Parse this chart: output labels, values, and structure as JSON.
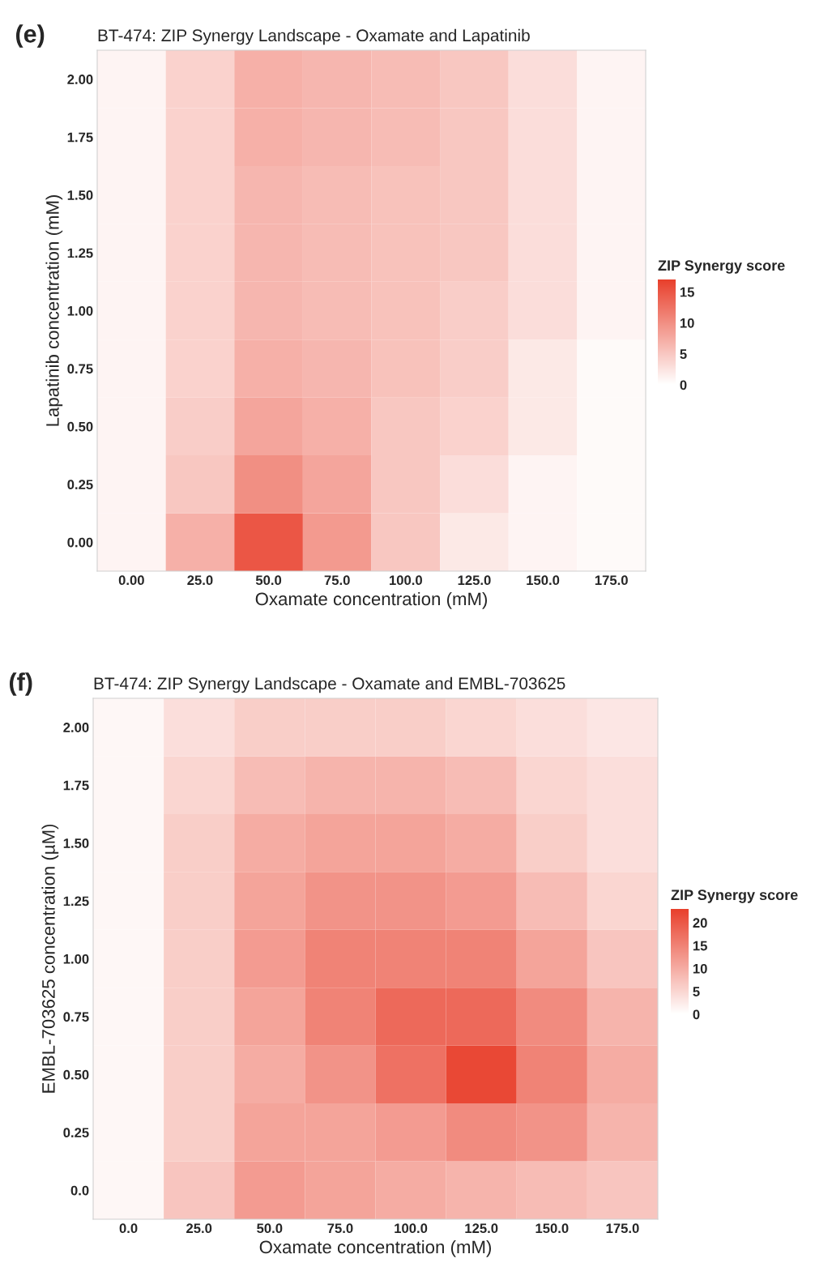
{
  "chart_data": [
    {
      "type": "heatmap",
      "title": "BT-474: ZIP Synergy Landscape - Oxamate and Lapatinib",
      "xlabel": "Oxamate concentration (mM)",
      "ylabel": "Lapatinib concentration (mM)",
      "clabel": "ZIP Synergy score",
      "annotations": [
        "(e)"
      ],
      "categories": [
        "0.00",
        "25.0",
        "50.0",
        "75.0",
        "100.0",
        "125.0",
        "150.0",
        "175.0"
      ],
      "y_categories": [
        "2.00",
        "1.75",
        "1.50",
        "1.25",
        "1.00",
        "0.75",
        "0.50",
        "0.25",
        "0.00"
      ],
      "cells": [
        [
          1,
          4,
          7,
          6.5,
          6,
          5,
          3,
          1
        ],
        [
          1,
          4,
          7,
          6.5,
          6,
          5,
          3,
          1
        ],
        [
          1,
          4,
          6.5,
          6,
          5.5,
          5,
          3,
          1
        ],
        [
          1,
          4,
          6.5,
          6,
          5.5,
          5,
          3,
          1
        ],
        [
          1,
          4,
          6.5,
          6,
          5.5,
          4.5,
          3,
          1
        ],
        [
          1,
          4,
          7,
          6.5,
          5.5,
          4.5,
          2,
          0.5
        ],
        [
          1,
          4.5,
          8,
          7,
          5,
          4,
          2,
          0.5
        ],
        [
          1,
          5,
          10,
          8,
          5,
          3,
          1,
          0.5
        ],
        [
          1,
          7,
          15,
          9,
          5,
          2,
          1,
          0.5
        ]
      ],
      "colors": [
        "#ffffff",
        "#e8402c"
      ],
      "clim": [
        0,
        17
      ],
      "cticks": [
        0,
        5,
        10,
        15
      ]
    },
    {
      "type": "heatmap",
      "title": "BT-474: ZIP Synergy Landscape - Oxamate and EMBL-703625",
      "xlabel": "Oxamate concentration (mM)",
      "ylabel": "EMBL-703625 concentration (µM)",
      "clabel": "ZIP Synergy score",
      "annotations": [
        "(f)"
      ],
      "categories": [
        "0.0",
        "25.0",
        "50.0",
        "75.0",
        "100.0",
        "125.0",
        "150.0",
        "175.0"
      ],
      "y_categories": [
        "2.00",
        "1.75",
        "1.50",
        "1.25",
        "1.00",
        "0.75",
        "0.50",
        "0.25",
        "0.0"
      ],
      "cells": [
        [
          1,
          4,
          6,
          6,
          6,
          5,
          4,
          3
        ],
        [
          1,
          5,
          8,
          9,
          9,
          8,
          5,
          4
        ],
        [
          1,
          6,
          10,
          11,
          11,
          10,
          6,
          4
        ],
        [
          1,
          6,
          11,
          13,
          13,
          12,
          8,
          5
        ],
        [
          1,
          6,
          12,
          15,
          15,
          15,
          11,
          7
        ],
        [
          1,
          6,
          11,
          15,
          18,
          18,
          14,
          9
        ],
        [
          1,
          6,
          10,
          13,
          17,
          22,
          15,
          10
        ],
        [
          1,
          6,
          11,
          11,
          12,
          14,
          13,
          9
        ],
        [
          1,
          7,
          12,
          11,
          10,
          9,
          8,
          7
        ]
      ],
      "colors": [
        "#ffffff",
        "#e8402c"
      ],
      "clim": [
        0,
        23
      ],
      "cticks": [
        0,
        5,
        10,
        15,
        20
      ]
    }
  ]
}
